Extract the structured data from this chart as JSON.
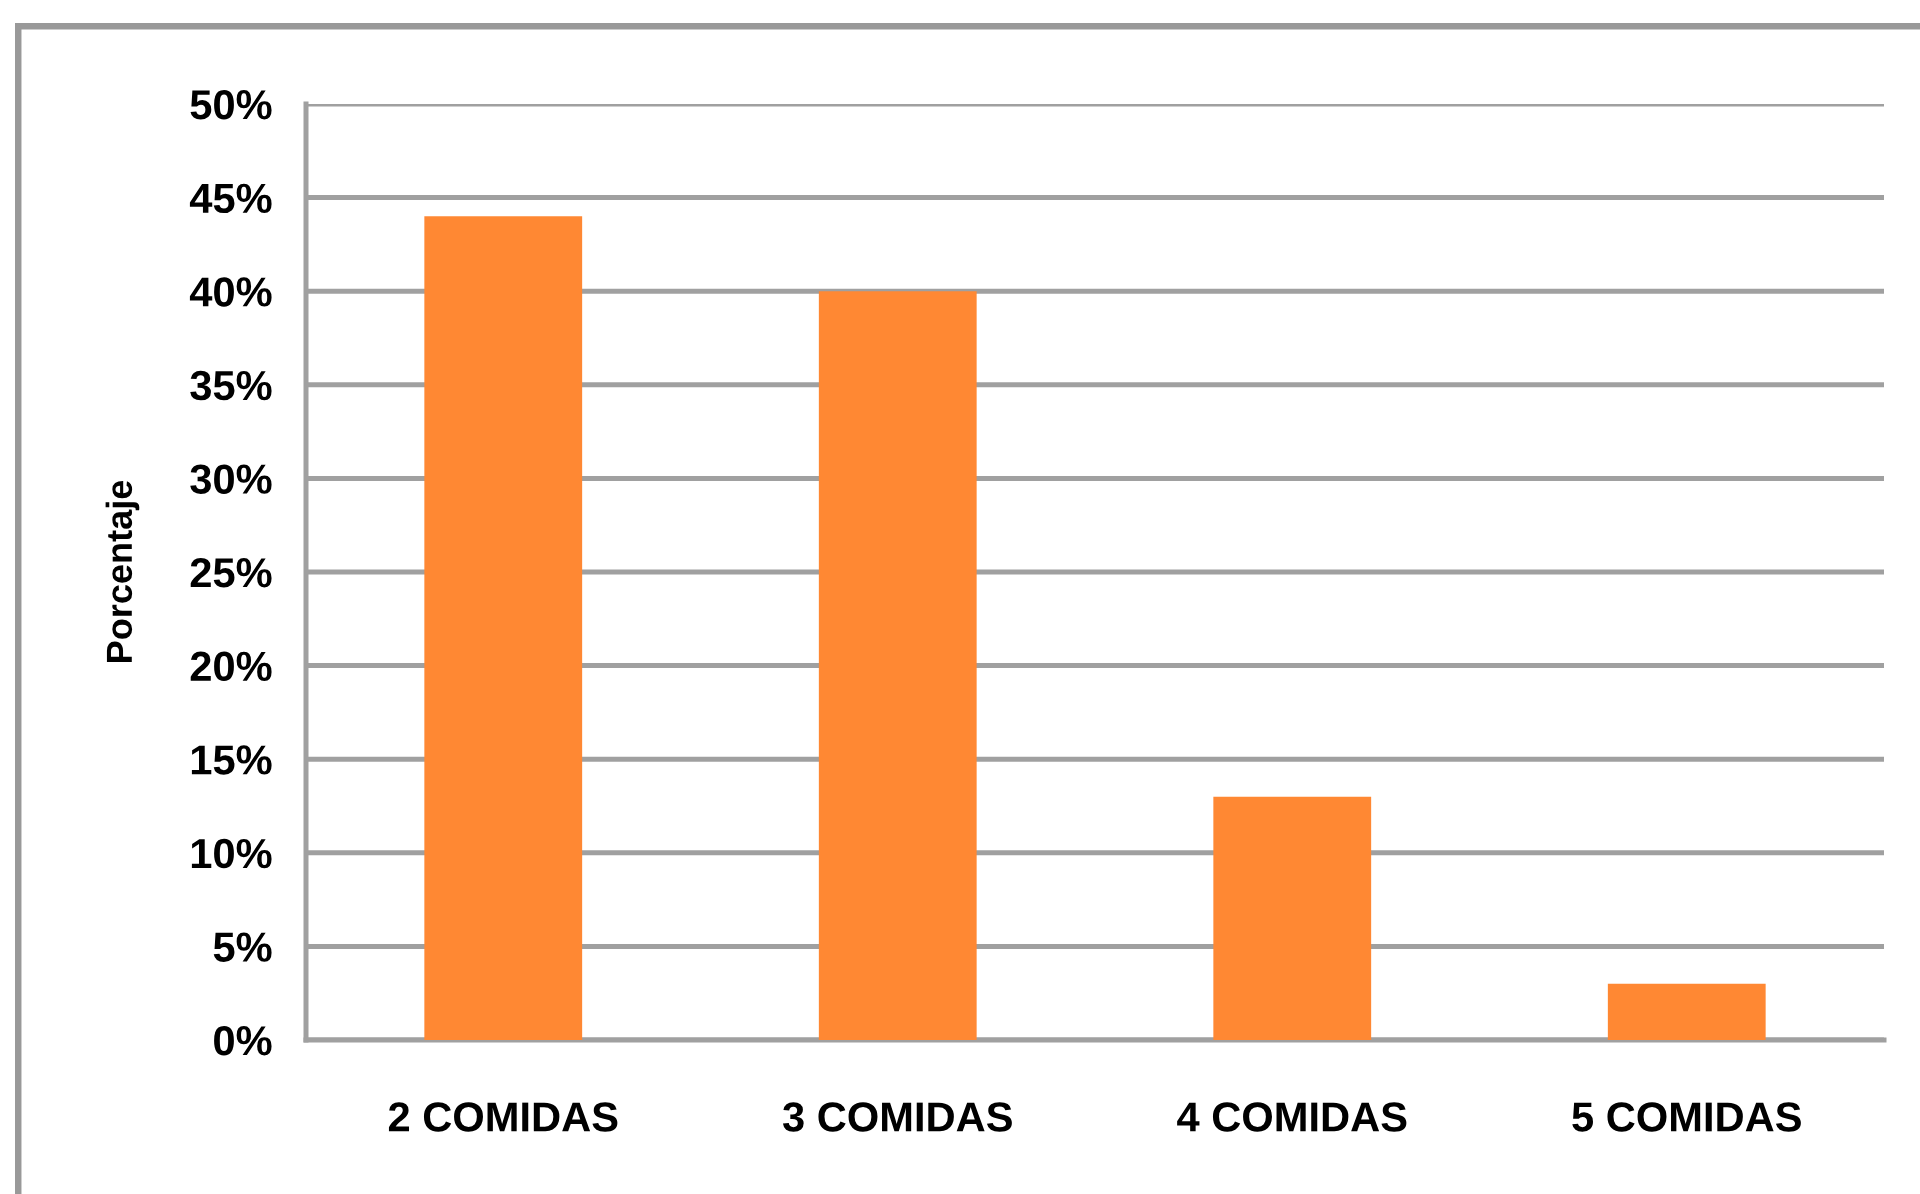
{
  "chart_data": {
    "type": "bar",
    "ylabel": "Porcentaje",
    "categories": [
      "2 COMIDAS",
      "3 COMIDAS",
      "4 COMIDAS",
      "5 COMIDAS"
    ],
    "values": [
      44,
      40,
      13,
      3
    ],
    "color": "#ff8833",
    "ylim": [
      0,
      50
    ],
    "yticks": [
      {
        "value": 0,
        "label": "0%"
      },
      {
        "value": 5,
        "label": "5%"
      },
      {
        "value": 10,
        "label": "10%"
      },
      {
        "value": 15,
        "label": "15%"
      },
      {
        "value": 20,
        "label": "20%"
      },
      {
        "value": 25,
        "label": "25%"
      },
      {
        "value": 30,
        "label": "30%"
      },
      {
        "value": 35,
        "label": "35%"
      },
      {
        "value": 40,
        "label": "40%"
      },
      {
        "value": 45,
        "label": "45%"
      },
      {
        "value": 50,
        "label": "50%"
      }
    ],
    "grid": "y"
  }
}
